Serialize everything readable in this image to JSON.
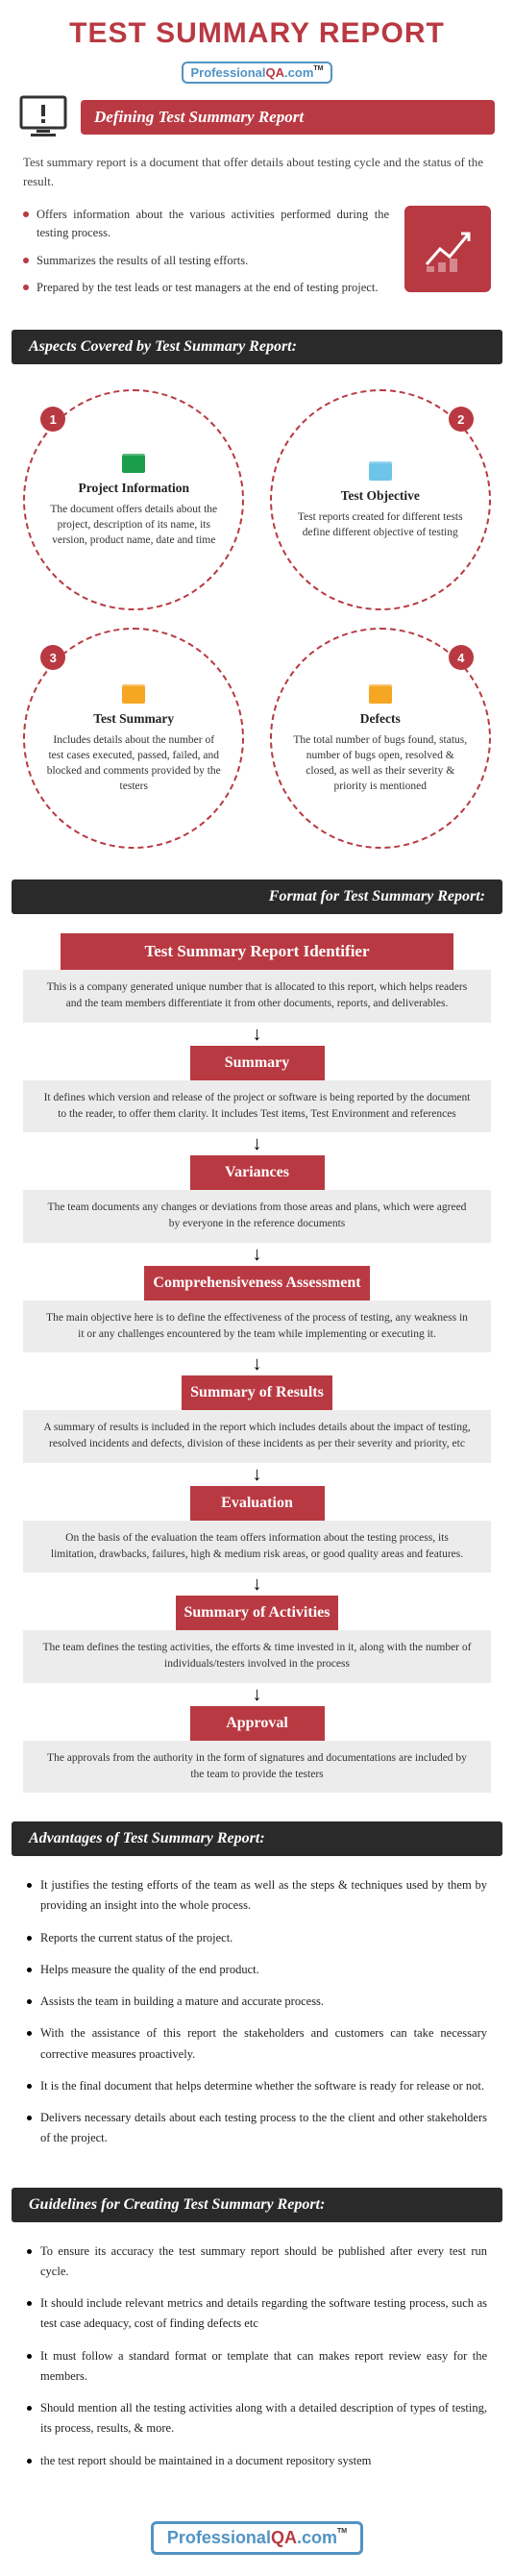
{
  "colors": {
    "accent": "#b93942",
    "dark": "#2a2a2a",
    "gray": "#ececec",
    "blue": "#5193c4"
  },
  "title": "TEST SUMMARY REPORT",
  "logo": {
    "p1": "Professional",
    "p2": "QA",
    "p3": ".com",
    "tm": "TM"
  },
  "section_defining": "Defining Test Summary Report",
  "intro": "Test summary report is a document that offer details about testing cycle and the status of the result.",
  "intro_bullets": [
    "Offers information about the various activities performed during the testing process.",
    "Summarizes the results of all testing efforts.",
    "Prepared by the test leads or test managers at the end of testing project."
  ],
  "section_aspects": "Aspects Covered by Test Summary Report:",
  "aspects": [
    {
      "num": "1",
      "title": "Project Information",
      "desc": "The document offers details about the project, description of its name, its version, product name, date and time",
      "icon_color": "#1a9e4a"
    },
    {
      "num": "2",
      "title": "Test Objective",
      "desc": "Test reports created for different tests define different objective of testing",
      "icon_color": "#6ec5e8"
    },
    {
      "num": "3",
      "title": "Test Summary",
      "desc": "Includes details about the number of test cases executed, passed, failed, and blocked and comments provided by the testers",
      "icon_color": "#f5a623"
    },
    {
      "num": "4",
      "title": "Defects",
      "desc": "The total number of bugs found, status, number of bugs open, resolved & closed, as well as their severity & priority is mentioned",
      "icon_color": "#f5a623"
    }
  ],
  "section_format": "Format for Test Summary Report:",
  "format_steps": [
    {
      "h": "Test Summary Report Identifier",
      "d": "This is a company generated unique number that is allocated to this report, which helps readers and the team members differentiate it from other documents, reports, and deliverables."
    },
    {
      "h": "Summary",
      "d": "It defines which version and release of the project or software is being reported by the document to the reader, to offer them clarity. It includes Test items, Test Environment and references"
    },
    {
      "h": "Variances",
      "d": "The team documents any changes or deviations from those areas and plans, which were agreed by everyone in the reference documents"
    },
    {
      "h": "Comprehensiveness Assessment",
      "d": "The main objective here is to define the effectiveness of the process of testing, any weakness in it or any challenges encountered by the team while implementing or executing it."
    },
    {
      "h": "Summary of Results",
      "d": "A summary of results is included in the report which includes details about the impact of testing, resolved incidents and defects, division of these incidents as per their severity and priority, etc"
    },
    {
      "h": "Evaluation",
      "d": "On the basis of the evaluation the team offers information about the testing process, its limitation, drawbacks, failures, high & medium risk areas, or good quality areas and features."
    },
    {
      "h": "Summary of Activities",
      "d": "The team defines the testing activities, the efforts & time invested in it, along with the number of individuals/testers involved in the process"
    },
    {
      "h": "Approval",
      "d": "The approvals from the authority in the form of signatures and documentations are included by the team to provide the testers"
    }
  ],
  "section_advantages": "Advantages of Test Summary Report:",
  "advantages": [
    "It justifies the testing efforts of the team as well as the steps & techniques used by them by providing an insight into the whole process.",
    "Reports the current status of the project.",
    "Helps measure the quality of the end product.",
    "Assists the team in building a mature and accurate process.",
    "With the assistance of this report the stakeholders and customers can take necessary corrective measures proactively.",
    "It is the final document that helps determine whether the software is ready for release or not.",
    "Delivers necessary details about each testing process to the the client and other stakeholders of the project."
  ],
  "section_guidelines": "Guidelines for Creating Test Summary Report:",
  "guidelines": [
    "To ensure its accuracy the test summary report should be published after every test run cycle.",
    "It should include relevant metrics and details regarding the software testing process, such as test case adequacy, cost of finding defects etc",
    "It must follow a standard format or template that can makes report review easy for the members.",
    "Should mention all the testing activities along with a detailed description of types of testing, its process, results, & more.",
    "the test report should be maintained in a document repository system"
  ]
}
